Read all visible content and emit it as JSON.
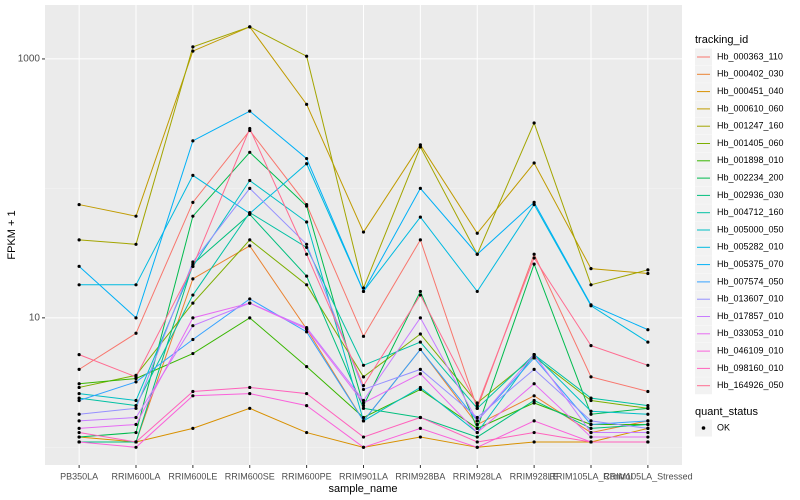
{
  "chart_data": {
    "type": "line",
    "log_scale": "y",
    "grid": true,
    "x_label": "sample_name",
    "y_label": "FPKM + 1",
    "legend_title": "tracking_id",
    "shape_legend": {
      "title": "quant_status",
      "labels": [
        "OK"
      ]
    },
    "categories": [
      "PB350LA",
      "RRIM600LA",
      "RRIM600LE",
      "RRIM600SE",
      "RRIM600PE",
      "RRIM901LA",
      "RRIM928BA",
      "RRIM928LA",
      "RRIM928LE",
      "RRIM105LA_Control",
      "RRIM105LA_Stressed"
    ],
    "ylim": [
      0.73,
      2610
    ],
    "yticks": [
      10,
      1000
    ],
    "series": [
      {
        "name": "Hb_000363_110",
        "color": "#F8766D",
        "values": [
          4.0,
          7.6,
          78,
          280,
          75,
          7.2,
          40,
          2.0,
          31,
          3.5,
          2.7
        ]
      },
      {
        "name": "Hb_000402_030",
        "color": "#EA8331",
        "values": [
          1.1,
          1.1,
          20,
          36,
          8.2,
          1.6,
          5.7,
          1.5,
          2.5,
          1.3,
          1.6
        ]
      },
      {
        "name": "Hb_000451_040",
        "color": "#D89000",
        "values": [
          1.2,
          1.1,
          1.4,
          2.0,
          1.3,
          1.0,
          1.2,
          1.0,
          1.1,
          1.1,
          1.4
        ]
      },
      {
        "name": "Hb_000610_060",
        "color": "#C09B00",
        "values": [
          75,
          61,
          1150,
          1770,
          446,
          46,
          217,
          45,
          157,
          24,
          22
        ]
      },
      {
        "name": "Hb_001247_160",
        "color": "#A3A500",
        "values": [
          40,
          37,
          1240,
          1770,
          1050,
          17,
          209,
          31,
          320,
          18,
          23.5
        ]
      },
      {
        "name": "Hb_001405_060",
        "color": "#7CAE00",
        "values": [
          2.9,
          3.6,
          13,
          40,
          18,
          3.5,
          7.5,
          2.2,
          5.0,
          2.3,
          2.0
        ]
      },
      {
        "name": "Hb_001898_010",
        "color": "#39B600",
        "values": [
          3.1,
          3.4,
          5.3,
          10,
          4.2,
          1.7,
          2.8,
          1.4,
          2.2,
          1.5,
          1.5
        ]
      },
      {
        "name": "Hb_002234_200",
        "color": "#00BB4E",
        "values": [
          1.2,
          1.3,
          61,
          190,
          73,
          2.1,
          16,
          1.4,
          26,
          1.8,
          2.0
        ]
      },
      {
        "name": "Hb_002936_030",
        "color": "#00BF7D",
        "values": [
          1.1,
          1.1,
          26,
          63,
          21,
          2.0,
          1.7,
          1.2,
          2.3,
          1.4,
          1.5
        ]
      },
      {
        "name": "Hb_004712_160",
        "color": "#00C1A3",
        "values": [
          2.4,
          2.1,
          15,
          65,
          35,
          4.3,
          6.5,
          2.0,
          5.2,
          2.4,
          2.1
        ]
      },
      {
        "name": "Hb_005000_050",
        "color": "#00BFC4",
        "values": [
          2.6,
          2.3,
          25,
          115,
          55,
          1.6,
          2.9,
          1.3,
          5.2,
          1.9,
          1.8
        ]
      },
      {
        "name": "Hb_005282_010",
        "color": "#00BAE0",
        "values": [
          18,
          18,
          126,
          64,
          155,
          16,
          60,
          16,
          75,
          12.4,
          6.5
        ]
      },
      {
        "name": "Hb_005375_070",
        "color": "#00B0F6",
        "values": [
          25,
          10,
          233,
          395,
          170,
          16,
          100,
          31,
          78,
          12.6,
          8.1
        ]
      },
      {
        "name": "Hb_007574_050",
        "color": "#35A2FF",
        "values": [
          2.3,
          3.2,
          6.8,
          14,
          7.8,
          1.6,
          5.7,
          1.6,
          4.9,
          1.5,
          1.6
        ]
      },
      {
        "name": "Hb_013607_010",
        "color": "#9590FF",
        "values": [
          1.8,
          2.0,
          27,
          100,
          37,
          2.8,
          4.0,
          1.7,
          4.0,
          1.6,
          1.4
        ]
      },
      {
        "name": "Hb_017857_010",
        "color": "#C77CFF",
        "values": [
          1.6,
          1.7,
          8.7,
          13,
          8.4,
          2.3,
          10,
          1.6,
          5.2,
          1.3,
          1.3
        ]
      },
      {
        "name": "Hb_033053_010",
        "color": "#E76BF3",
        "values": [
          1.4,
          1.5,
          10,
          13,
          8.2,
          2.2,
          3.7,
          1.3,
          3.1,
          1.2,
          1.2
        ]
      },
      {
        "name": "Hb_046109_010",
        "color": "#FA62DB",
        "values": [
          1.1,
          1.0,
          2.5,
          2.6,
          2.1,
          1.0,
          1.4,
          1.0,
          1.6,
          1.1,
          1.1
        ]
      },
      {
        "name": "Hb_098160_010",
        "color": "#FF62BC",
        "values": [
          1.3,
          1.1,
          2.7,
          2.9,
          2.6,
          1.2,
          1.7,
          1.1,
          1.3,
          1.1,
          1.1
        ]
      },
      {
        "name": "Hb_164926_050",
        "color": "#FF6C91",
        "values": [
          5.2,
          3.5,
          25,
          290,
          31,
          3.0,
          15,
          2.1,
          29,
          6.1,
          4.3
        ]
      }
    ]
  }
}
